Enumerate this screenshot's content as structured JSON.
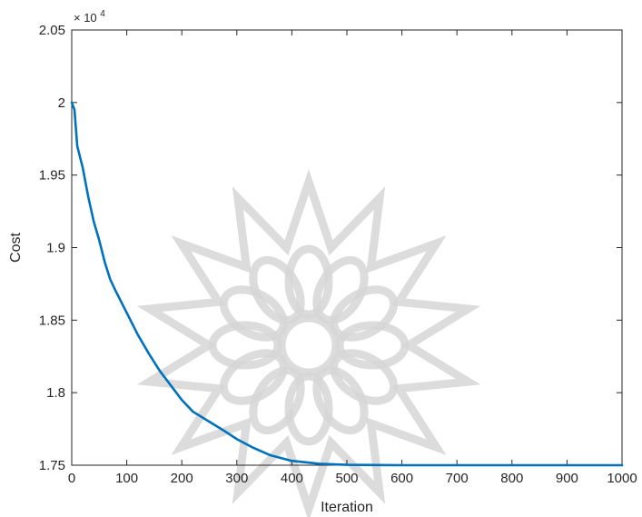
{
  "chart_data": {
    "type": "line",
    "xlabel": "Iteration",
    "ylabel": "Cost",
    "y_exponent_label": "× 10",
    "y_exponent_power": "4",
    "xlim": [
      0,
      1000
    ],
    "ylim": [
      1.75,
      2.05
    ],
    "x_ticks": [
      0,
      100,
      200,
      300,
      400,
      500,
      600,
      700,
      800,
      900,
      1000
    ],
    "x_tick_labels": [
      "0",
      "100",
      "200",
      "300",
      "400",
      "500",
      "600",
      "700",
      "800",
      "900",
      "1000"
    ],
    "y_ticks": [
      1.75,
      1.8,
      1.85,
      1.9,
      1.95,
      2.0,
      2.05
    ],
    "y_tick_labels": [
      "1.75",
      "1.8",
      "1.85",
      "1.9",
      "1.95",
      "2",
      "2.05"
    ],
    "grid": false,
    "series": [
      {
        "color": "#0072bd",
        "x": [
          0,
          5,
          10,
          20,
          30,
          40,
          50,
          60,
          70,
          80,
          100,
          120,
          140,
          160,
          180,
          200,
          220,
          250,
          280,
          300,
          330,
          360,
          400,
          450,
          500,
          550,
          600,
          700,
          800,
          900,
          1000
        ],
        "y": [
          2.0,
          1.995,
          1.97,
          1.955,
          1.935,
          1.918,
          1.905,
          1.89,
          1.878,
          1.87,
          1.855,
          1.84,
          1.827,
          1.815,
          1.805,
          1.795,
          1.787,
          1.78,
          1.773,
          1.768,
          1.762,
          1.757,
          1.753,
          1.751,
          1.7503,
          1.7501,
          1.75,
          1.75,
          1.75,
          1.75,
          1.75
        ]
      }
    ]
  },
  "watermark": {
    "icon": "star-rosette-watermark"
  }
}
